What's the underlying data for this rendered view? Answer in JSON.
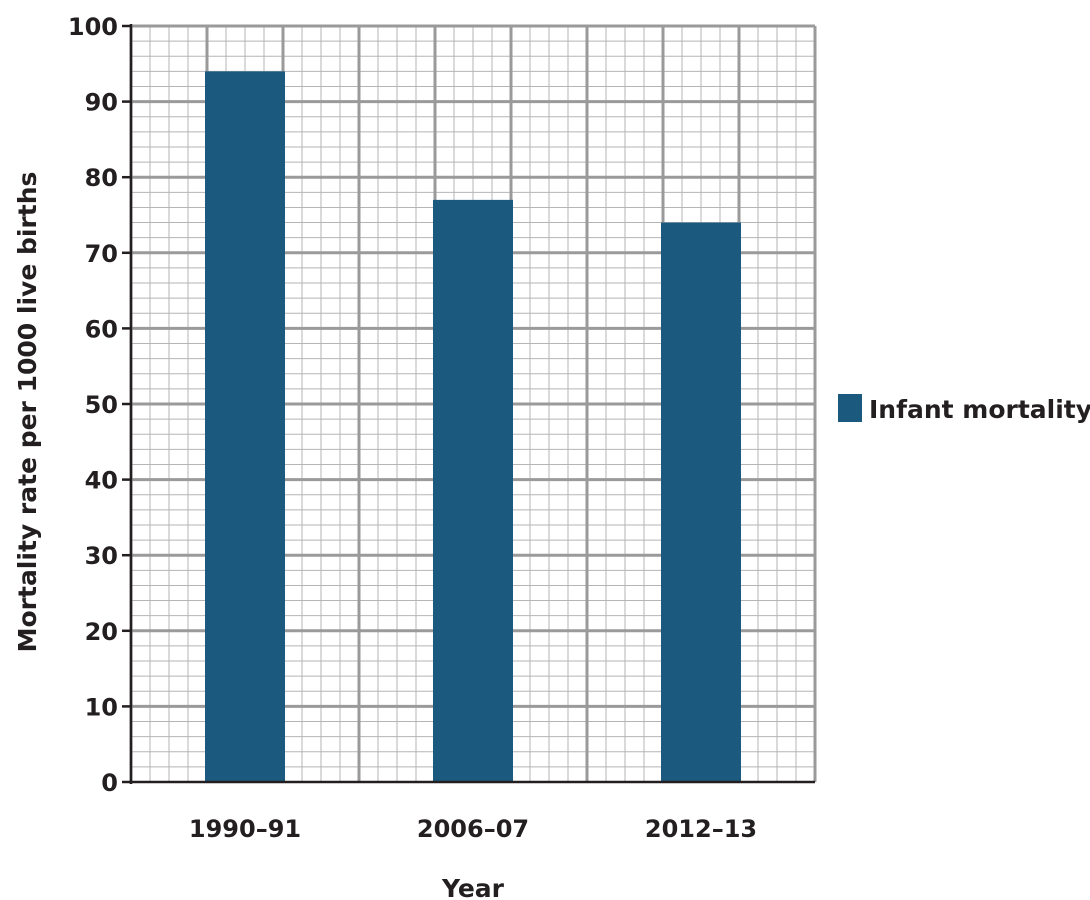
{
  "chart_data": {
    "type": "bar",
    "categories": [
      "1990–91",
      "2006–07",
      "2012–13"
    ],
    "series": [
      {
        "name": "Infant mortality",
        "values": [
          94,
          77,
          74
        ],
        "color": "#1b5a7e"
      }
    ],
    "title": "",
    "xlabel": "Year",
    "ylabel": "Mortality rate per 1000 live births",
    "ylim": [
      0,
      100
    ],
    "yticks": [
      "0",
      "10",
      "20",
      "30",
      "40",
      "50",
      "60",
      "70",
      "80",
      "90",
      "100"
    ],
    "minor_step": 2,
    "grid": true,
    "legend": "right",
    "colors": {
      "bar": "#1b5a7e",
      "grid_major": "#9a9a9a",
      "grid_minor": "#b5b5b5",
      "axis": "#231f20"
    }
  }
}
